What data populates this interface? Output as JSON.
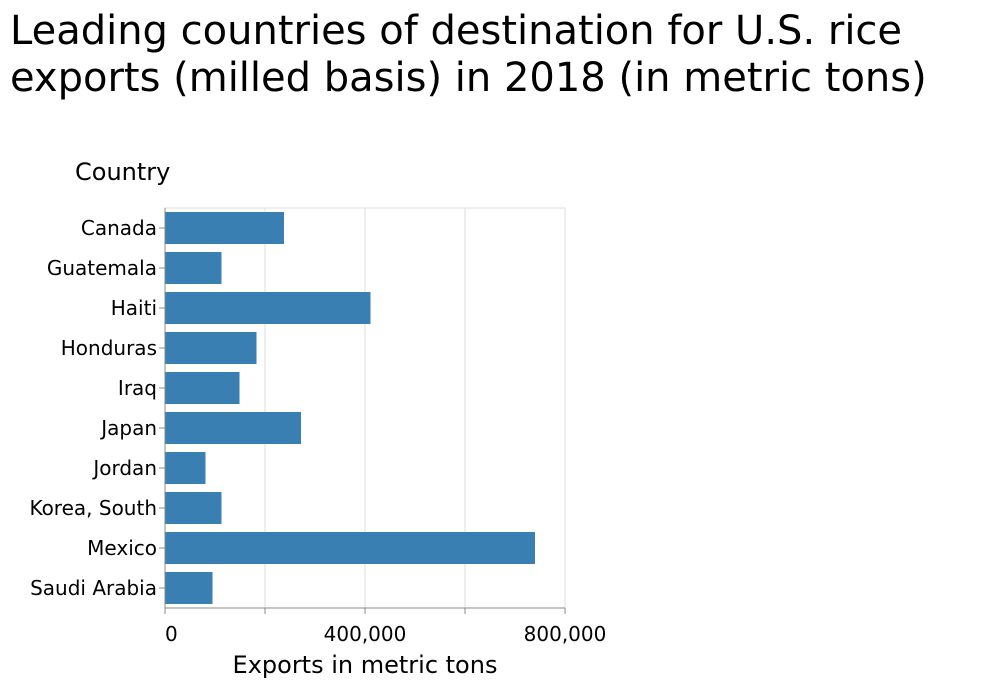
{
  "chart_data": {
    "type": "bar",
    "orientation": "horizontal",
    "title": "Leading countries of destination for U.S. rice exports (milled basis) in 2018 (in metric tons)",
    "xlabel": "Exports in metric tons",
    "ylabel": "Country",
    "categories": [
      "Canada",
      "Guatemala",
      "Haiti",
      "Honduras",
      "Iraq",
      "Japan",
      "Jordan",
      "Korea, South",
      "Mexico",
      "Saudi Arabia"
    ],
    "values": [
      238000,
      113000,
      411000,
      183000,
      149000,
      272000,
      81000,
      113000,
      740000,
      95000
    ],
    "xlim": [
      0,
      800000
    ],
    "xticks": [
      0,
      200000,
      400000,
      600000,
      800000
    ],
    "xtick_labels": [
      "0",
      "",
      "400,000",
      "",
      "800,000"
    ],
    "grid": true,
    "bar_color": "#3a7fb2"
  }
}
